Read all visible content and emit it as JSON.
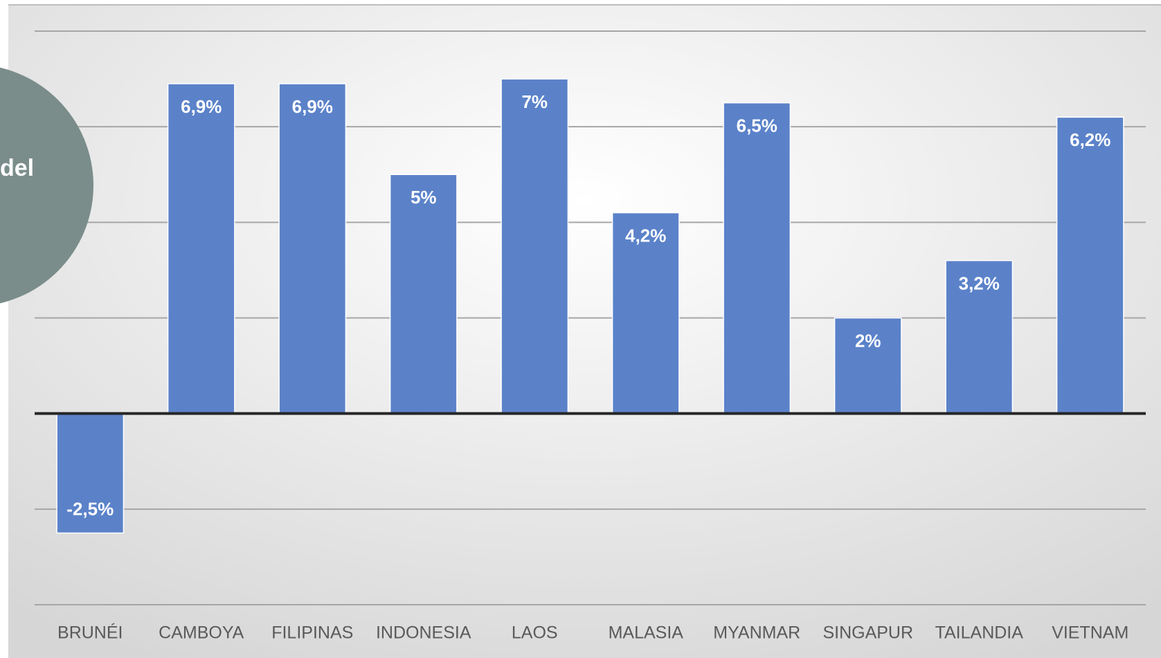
{
  "chart_data": {
    "type": "bar",
    "annotation": "del",
    "categories": [
      "BRUNÉI",
      "CAMBOYA",
      "FILIPINAS",
      "INDONESIA",
      "LAOS",
      "MALASIA",
      "MYANMAR",
      "SINGAPUR",
      "TAILANDIA",
      "VIETNAM"
    ],
    "values": [
      -2.5,
      6.9,
      6.9,
      5,
      7,
      4.2,
      6.5,
      2,
      3.2,
      6.2
    ],
    "value_labels": [
      "-2,5%",
      "6,9%",
      "6,9%",
      "5%",
      "7%",
      "4,2%",
      "6,5%",
      "2%",
      "3,2%",
      "6,2%"
    ],
    "color": "#5b82c9",
    "ylim": [
      -4,
      8
    ],
    "yticks": [
      -4,
      -2,
      0,
      2,
      4,
      6,
      8
    ],
    "grid": true
  }
}
